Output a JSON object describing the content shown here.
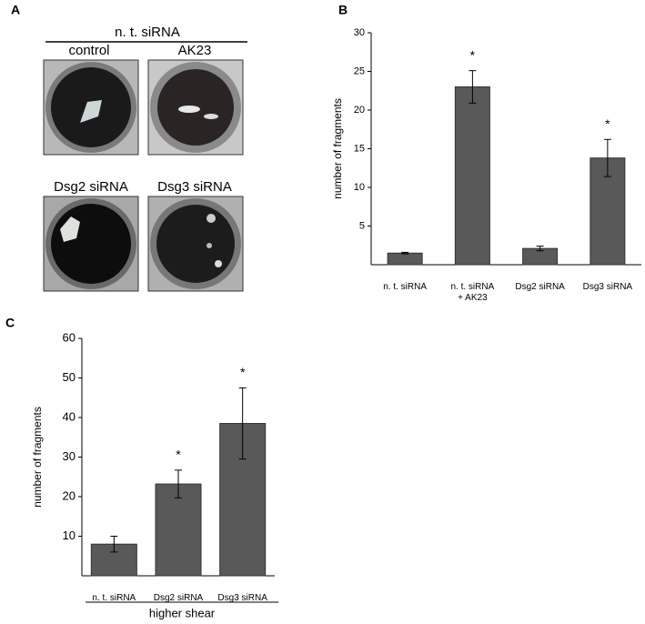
{
  "panel_labels": [
    "A",
    "B",
    "C"
  ],
  "panel_a": {
    "header": "n. t. siRNA",
    "images": [
      "control",
      "AK23",
      "Dsg2 siRNA",
      "Dsg3 siRNA"
    ]
  },
  "chart_data": [
    {
      "type": "bar",
      "y_label": "number of fragments",
      "categories": [
        "n. t. siRNA",
        "n. t. siRNA\n+ AK23",
        "Dsg2 siRNA",
        "Dsg3 siRNA"
      ],
      "values": [
        1.5,
        23,
        2.1,
        13.8
      ],
      "errors": [
        0.1,
        2.1,
        0.3,
        2.4
      ],
      "significance": [
        null,
        "*",
        null,
        "*"
      ],
      "color": "#595959",
      "ylim": [
        0,
        30
      ],
      "yticks": [
        5,
        10,
        15,
        20,
        25,
        30
      ]
    },
    {
      "type": "bar",
      "y_label": "number of fragments",
      "x_label": "higher shear",
      "categories": [
        "n. t. siRNA",
        "Dsg2 siRNA",
        "Dsg3 siRNA"
      ],
      "values": [
        8,
        23.2,
        38.5
      ],
      "errors": [
        2,
        3.5,
        9
      ],
      "significance": [
        null,
        "*",
        "*"
      ],
      "color": "#595959",
      "ylim": [
        0,
        60
      ],
      "yticks": [
        10,
        20,
        30,
        40,
        50,
        60
      ]
    }
  ]
}
